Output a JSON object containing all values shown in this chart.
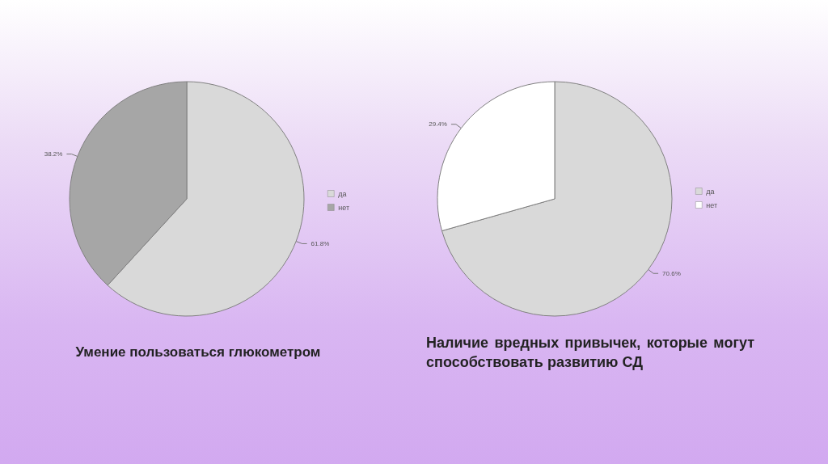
{
  "chart_data": [
    {
      "type": "pie",
      "title": "Умение пользоваться глюкометром",
      "categories": [
        "да",
        "нет"
      ],
      "values": [
        61.8,
        38.2
      ],
      "colors": [
        "#d9d9d9",
        "#a6a6a6"
      ],
      "value_labels": [
        "61.8%",
        "38.2%"
      ],
      "legend": "right"
    },
    {
      "type": "pie",
      "title": "Наличие вредных привычек, которые могут способствовать развитию СД",
      "categories": [
        "да",
        "нет"
      ],
      "values": [
        70.6,
        29.4
      ],
      "colors": [
        "#d9d9d9",
        "#ffffff"
      ],
      "value_labels": [
        "70.6%",
        "29.4%"
      ],
      "legend": "right"
    }
  ]
}
